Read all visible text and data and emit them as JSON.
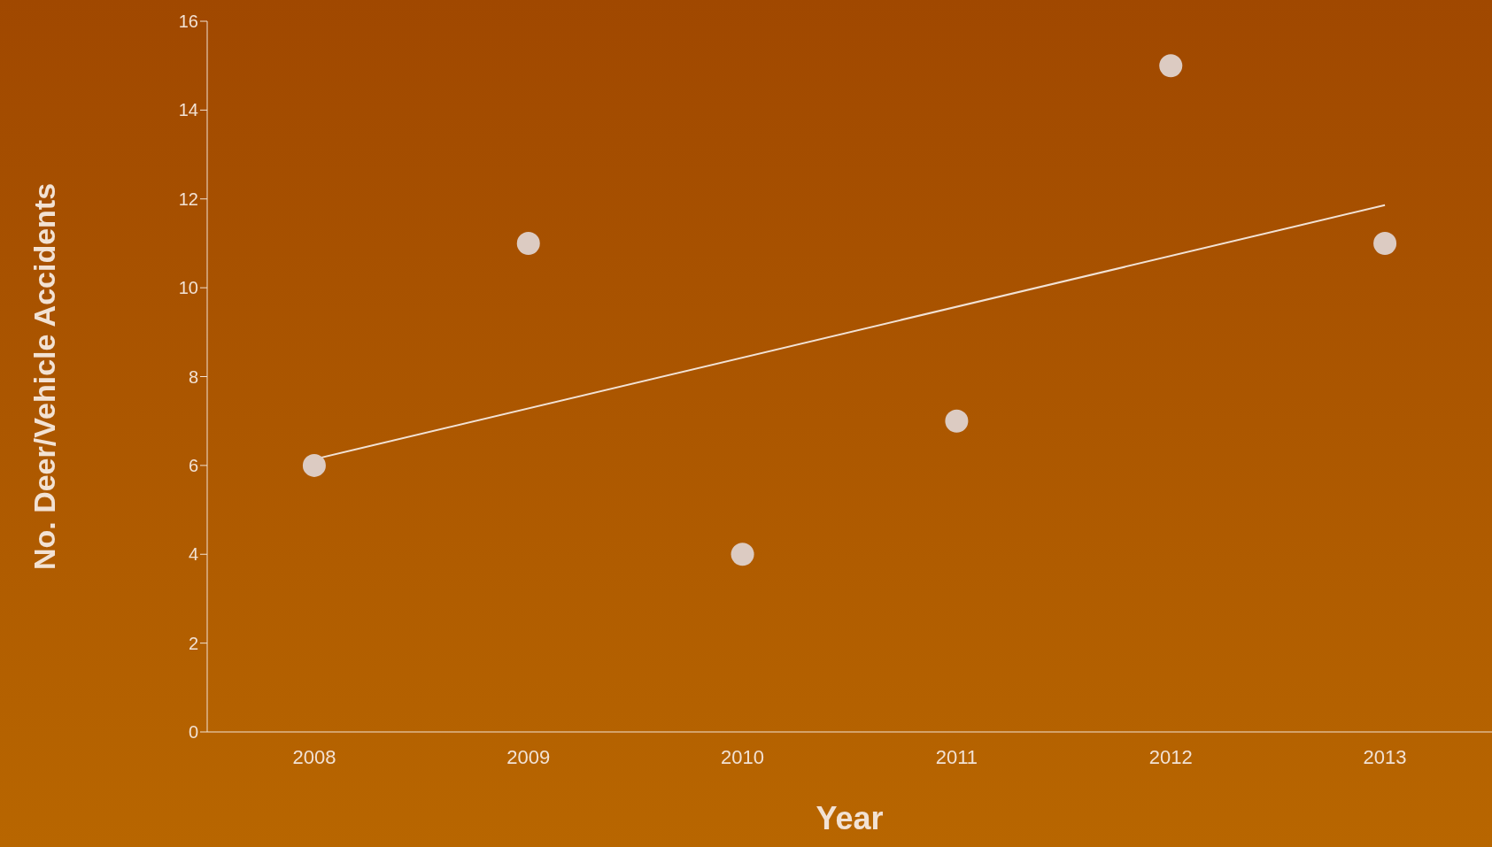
{
  "chart_data": {
    "type": "scatter",
    "xlabel": "Year",
    "ylabel": "No. Deer/Vehicle Accidents",
    "categories": [
      "2008",
      "2009",
      "2010",
      "2011",
      "2012",
      "2013"
    ],
    "series": [
      {
        "color": "#dccbc2",
        "marker": "circle",
        "values": [
          6,
          11,
          4,
          7,
          15,
          11
        ]
      },
      {
        "type": "line",
        "color": "#f2e2d4",
        "marker": "none",
        "values": [
          6.14,
          null,
          null,
          null,
          null,
          11.86
        ]
      }
    ],
    "ylim": [
      0,
      16
    ],
    "yticks": [
      0,
      2,
      4,
      6,
      8,
      10,
      12,
      14,
      16
    ],
    "line_style": "solid"
  }
}
